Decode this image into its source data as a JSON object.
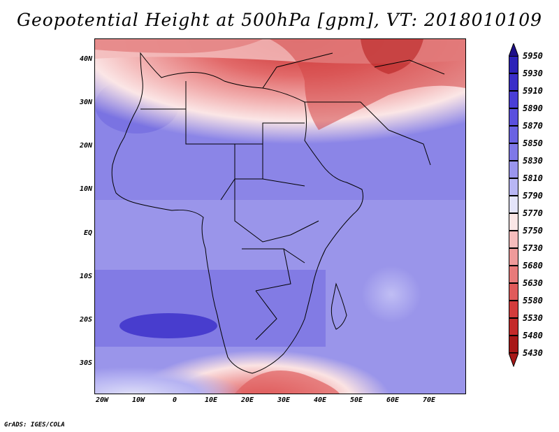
{
  "title": "Geopotential Height at 500hPa [gpm], VT: 2018010109",
  "credit": "GrADS: IGES/COLA",
  "lat_labels": [
    "40N",
    "30N",
    "20N",
    "10N",
    "EQ",
    "10S",
    "20S",
    "30S"
  ],
  "lon_labels": [
    "20W",
    "10W",
    "0",
    "10E",
    "20E",
    "30E",
    "40E",
    "50E",
    "60E",
    "70E"
  ],
  "colorbar": {
    "levels": [
      "5950",
      "5930",
      "5910",
      "5890",
      "5870",
      "5850",
      "5830",
      "5810",
      "5790",
      "5770",
      "5750",
      "5730",
      "5680",
      "5630",
      "5580",
      "5530",
      "5480",
      "5430"
    ],
    "colors": [
      "#1e0f8a",
      "#2d22b8",
      "#3a2ec8",
      "#4a3ed6",
      "#5a50de",
      "#6a62e2",
      "#7f78e8",
      "#9a95ee",
      "#b8b6f4",
      "#e4e4fa",
      "#fbe6e6",
      "#f6bcbc",
      "#ef9a9a",
      "#e87a7a",
      "#e05a5a",
      "#d43c3c",
      "#c42a2a",
      "#a81818"
    ]
  },
  "map_labels": {
    "field": "Geopotential Height 500hPa",
    "region": "Africa"
  }
}
